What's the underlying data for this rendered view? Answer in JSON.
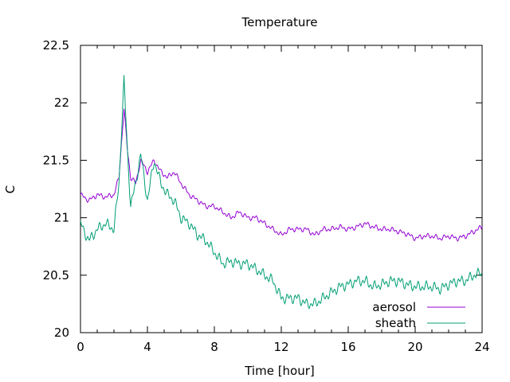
{
  "chart_data": {
    "type": "line",
    "title": "Temperature",
    "xlabel": "Time [hour]",
    "ylabel": "C",
    "xlim": [
      0,
      24
    ],
    "ylim": [
      20,
      22.5
    ],
    "xticks": [
      0,
      4,
      8,
      12,
      16,
      20,
      24
    ],
    "yticks": [
      20,
      20.5,
      21,
      21.5,
      22,
      22.5
    ],
    "ytick_labels": [
      "20",
      "20.5",
      "21",
      "21.5",
      "22",
      "22.5"
    ],
    "grid": false,
    "legend_position": "bottom-right",
    "series": [
      {
        "name": "aerosol",
        "color": "#9400d3",
        "x": [
          0,
          0.5,
          1,
          1.5,
          2,
          2.3,
          2.6,
          2.8,
          3,
          3.3,
          3.6,
          4,
          4.4,
          4.8,
          5.2,
          5.6,
          6,
          6.5,
          7,
          7.5,
          8,
          8.5,
          9,
          9.5,
          10,
          10.5,
          11,
          11.5,
          12,
          12.5,
          13,
          13.5,
          14,
          14.5,
          15,
          15.5,
          16,
          16.5,
          17,
          17.5,
          18,
          18.5,
          19,
          19.5,
          20,
          20.5,
          21,
          21.5,
          22,
          22.5,
          23,
          23.5,
          24
        ],
        "y": [
          21.2,
          21.15,
          21.2,
          21.18,
          21.2,
          21.35,
          21.95,
          21.6,
          21.35,
          21.3,
          21.5,
          21.4,
          21.5,
          21.4,
          21.35,
          21.4,
          21.3,
          21.2,
          21.15,
          21.1,
          21.1,
          21.05,
          21.0,
          21.05,
          21.0,
          21.0,
          20.95,
          20.9,
          20.85,
          20.9,
          20.9,
          20.9,
          20.85,
          20.9,
          20.9,
          20.92,
          20.9,
          20.92,
          20.95,
          20.92,
          20.9,
          20.9,
          20.88,
          20.86,
          20.82,
          20.84,
          20.84,
          20.82,
          20.84,
          20.82,
          20.84,
          20.88,
          20.92
        ]
      },
      {
        "name": "sheath",
        "color": "#009e73",
        "x": [
          0,
          0.5,
          1,
          1.5,
          2,
          2.3,
          2.6,
          2.8,
          3,
          3.3,
          3.6,
          4,
          4.4,
          4.8,
          5.2,
          5.6,
          6,
          6.5,
          7,
          7.5,
          8,
          8.5,
          9,
          9.5,
          10,
          10.5,
          11,
          11.5,
          12,
          12.5,
          13,
          13.5,
          14,
          14.5,
          15,
          15.5,
          16,
          16.5,
          17,
          17.5,
          18,
          18.5,
          19,
          19.5,
          20,
          20.5,
          21,
          21.5,
          22,
          22.5,
          23,
          23.5,
          24
        ],
        "y": [
          20.95,
          20.8,
          20.9,
          20.95,
          20.9,
          21.3,
          22.2,
          21.6,
          21.1,
          21.3,
          21.55,
          21.15,
          21.5,
          21.3,
          21.2,
          21.15,
          21.0,
          20.95,
          20.85,
          20.8,
          20.7,
          20.6,
          20.62,
          20.6,
          20.6,
          20.55,
          20.5,
          20.45,
          20.3,
          20.3,
          20.3,
          20.25,
          20.25,
          20.3,
          20.35,
          20.4,
          20.42,
          20.45,
          20.45,
          20.4,
          20.42,
          20.45,
          20.45,
          20.42,
          20.4,
          20.4,
          20.4,
          20.38,
          20.42,
          20.45,
          20.45,
          20.5,
          20.52
        ]
      }
    ]
  }
}
